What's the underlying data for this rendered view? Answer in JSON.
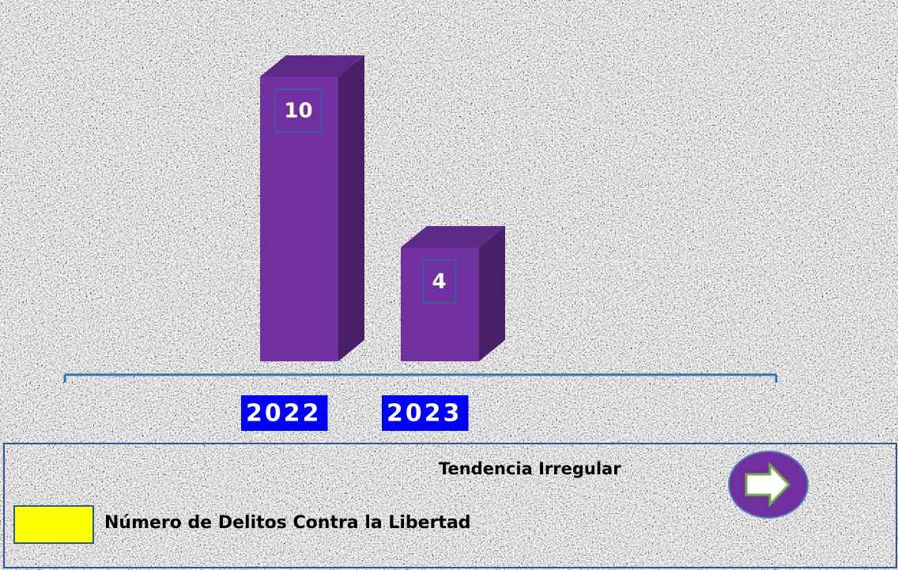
{
  "chart_data": {
    "type": "bar3d",
    "categories": [
      "2022",
      "2023"
    ],
    "series": [
      {
        "name": "Número de Delitos Contra la Libertad",
        "color": "#7030a0",
        "values": [
          10,
          4
        ]
      }
    ],
    "annotation": "Tendencia Irregular",
    "legend_color": "#ffff00",
    "category_label_background": "#0000ff"
  }
}
